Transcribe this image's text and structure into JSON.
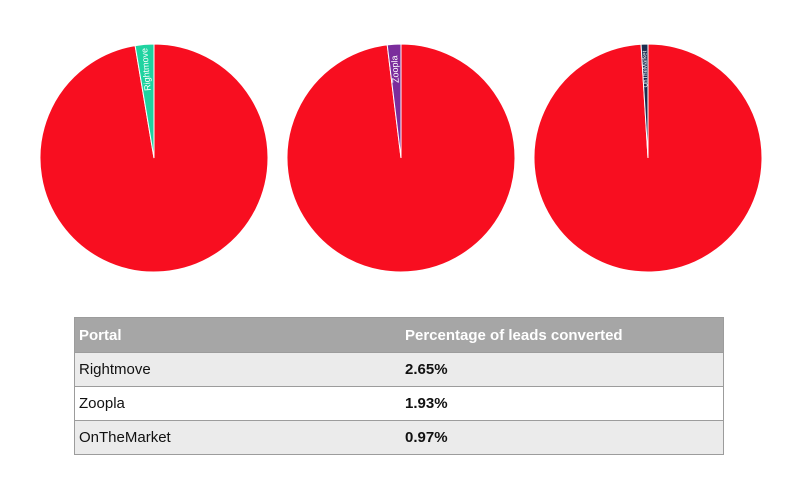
{
  "chart_data": [
    {
      "type": "pie",
      "slices": [
        {
          "label": "Rightmove",
          "value": 2.65,
          "color": "#1fd3a0"
        },
        {
          "label": "",
          "value": 97.35,
          "color": "#f80e20"
        }
      ]
    },
    {
      "type": "pie",
      "slices": [
        {
          "label": "Zoopla",
          "value": 1.93,
          "color": "#7b2d9c"
        },
        {
          "label": "",
          "value": 98.07,
          "color": "#f80e20"
        }
      ]
    },
    {
      "type": "pie",
      "slices": [
        {
          "label": "OnTheMarket",
          "value": 0.97,
          "color": "#1c2d4f"
        },
        {
          "label": "",
          "value": 99.03,
          "color": "#f80e20"
        }
      ]
    }
  ],
  "table": {
    "headers": [
      "Portal",
      "Percentage of leads converted"
    ],
    "rows": [
      {
        "portal": "Rightmove",
        "value": "2.65%"
      },
      {
        "portal": "Zoopla",
        "value": "1.93%"
      },
      {
        "portal": "OnTheMarket",
        "value": "0.97%"
      }
    ]
  }
}
